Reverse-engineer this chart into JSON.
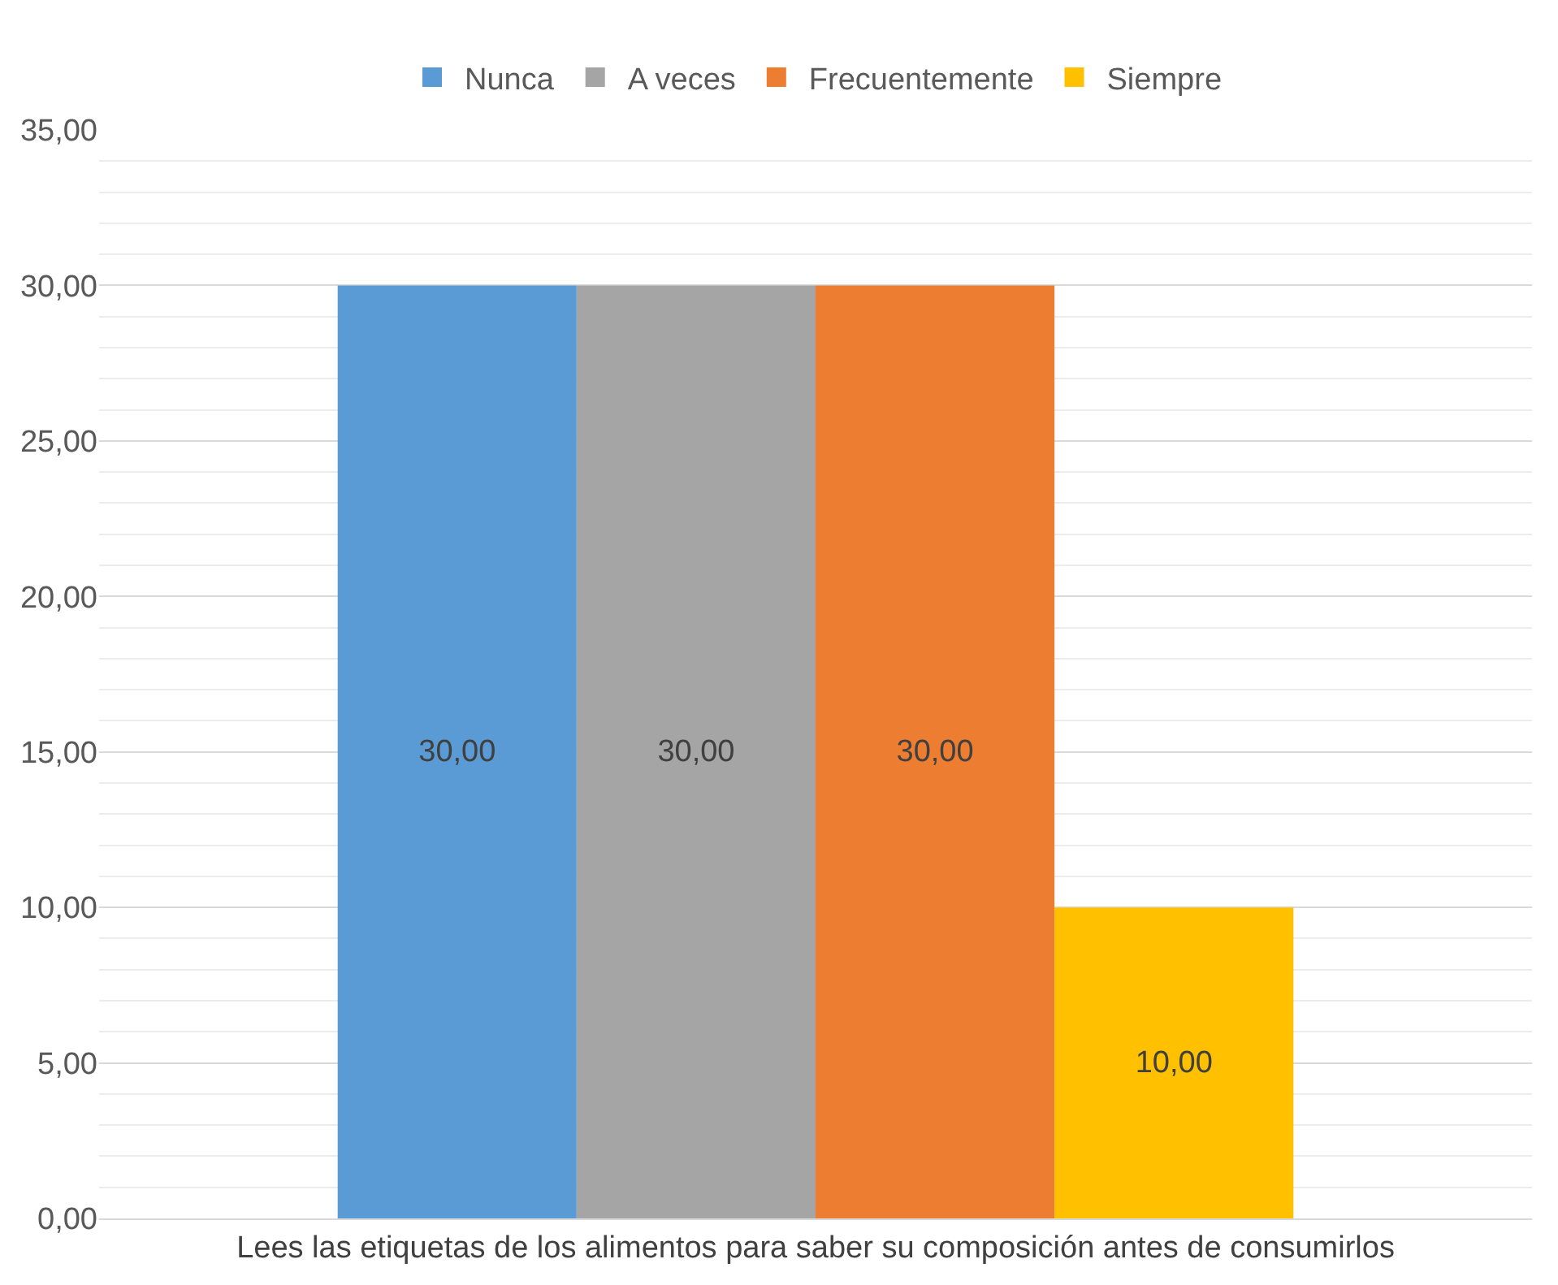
{
  "chart_data": {
    "type": "bar",
    "categories": [
      "Lees las etiquetas de los alimentos para saber su composición antes de consumirlos"
    ],
    "series": [
      {
        "name": "Nunca",
        "color": "#5b9bd5",
        "values": [
          30
        ],
        "value_labels": [
          "30,00"
        ]
      },
      {
        "name": "A veces",
        "color": "#a5a5a5",
        "values": [
          30
        ],
        "value_labels": [
          "30,00"
        ]
      },
      {
        "name": "Frecuentemente",
        "color": "#ed7d31",
        "values": [
          30
        ],
        "value_labels": [
          "30,00"
        ]
      },
      {
        "name": "Siempre",
        "color": "#ffc000",
        "values": [
          10
        ],
        "value_labels": [
          "10,00"
        ]
      }
    ],
    "ylim": [
      0,
      35
    ],
    "yticks": [
      {
        "value": 0,
        "label": "0,00"
      },
      {
        "value": 5,
        "label": "5,00"
      },
      {
        "value": 10,
        "label": "10,00"
      },
      {
        "value": 15,
        "label": "15,00"
      },
      {
        "value": 20,
        "label": "20,00"
      },
      {
        "value": 25,
        "label": "25,00"
      },
      {
        "value": 30,
        "label": "30,00"
      },
      {
        "value": 35,
        "label": "35,00"
      }
    ],
    "grid": "y",
    "legend": "top"
  }
}
